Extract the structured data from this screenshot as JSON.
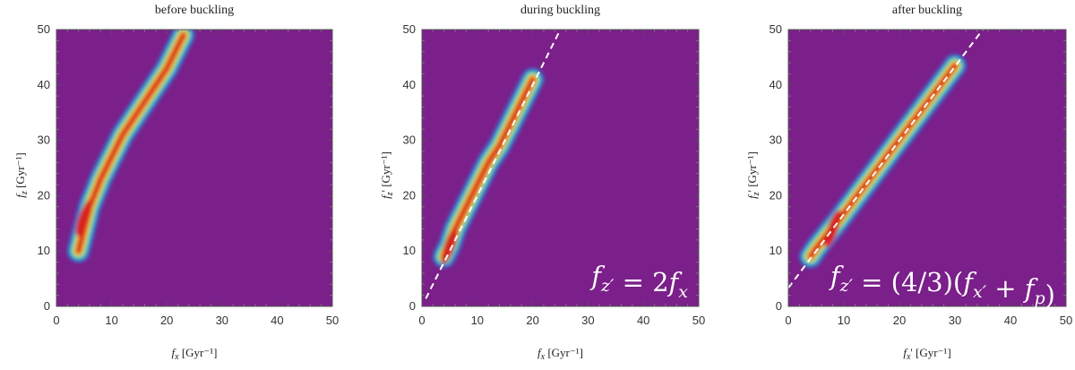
{
  "colors": {
    "background": "#7b1f8a",
    "colormap": [
      "#7b1f8a",
      "#3c5fc4",
      "#2fa6d8",
      "#4fd6b5",
      "#c8e04a",
      "#f3b62e",
      "#ee6a22",
      "#d8231f"
    ],
    "fit_line": "#ffffff"
  },
  "chart_data": [
    {
      "type": "heatmap",
      "title": "before buckling",
      "xlabel": "f_x [Gyr⁻¹]",
      "ylabel": "f_z [Gyr⁻¹]",
      "xlim": [
        0,
        50
      ],
      "ylim": [
        0,
        50
      ],
      "xticks": [
        0,
        10,
        20,
        30,
        40,
        50
      ],
      "yticks": [
        0,
        10,
        20,
        30,
        40,
        50
      ],
      "density_ridge": {
        "x": [
          4,
          5,
          6,
          8,
          10,
          12,
          14,
          16,
          18,
          20,
          22,
          23
        ],
        "z": [
          10,
          14,
          18,
          23,
          27,
          31,
          34,
          37,
          40,
          43,
          47,
          49
        ],
        "peak": [
          5,
          16
        ]
      },
      "fit_line": null,
      "formula": ""
    },
    {
      "type": "heatmap",
      "title": "during buckling",
      "xlabel": "f_x [Gyr⁻¹]",
      "ylabel": "f_z' [Gyr⁻¹]",
      "xlim": [
        0,
        50
      ],
      "ylim": [
        0,
        50
      ],
      "xticks": [
        0,
        10,
        20,
        30,
        40,
        50
      ],
      "yticks": [
        0,
        10,
        20,
        30,
        40,
        50
      ],
      "density_ridge": {
        "x": [
          4,
          5,
          6,
          8,
          10,
          12,
          14,
          16,
          18,
          20
        ],
        "z": [
          9,
          11,
          14,
          18,
          22,
          26,
          29,
          33,
          37,
          41
        ],
        "peak": [
          5,
          11
        ]
      },
      "fit_line": {
        "slope": 2,
        "intercept": 0,
        "x_from": 0.7,
        "x_to": 25
      },
      "formula": "f_z' = 2f_x"
    },
    {
      "type": "heatmap",
      "title": "after buckling",
      "xlabel": "f_x' [Gyr⁻¹]",
      "ylabel": "f_z' [Gyr⁻¹]",
      "xlim": [
        0,
        50
      ],
      "ylim": [
        0,
        50
      ],
      "xticks": [
        0,
        10,
        20,
        30,
        40,
        50
      ],
      "yticks": [
        0,
        10,
        20,
        30,
        40,
        50
      ],
      "density_ridge": {
        "x": [
          4,
          5,
          7,
          9,
          12,
          15,
          18,
          21,
          24,
          27,
          30
        ],
        "z": [
          9,
          10.5,
          13,
          15.5,
          19.5,
          23.5,
          27.5,
          31.5,
          35.5,
          39.5,
          43.5
        ],
        "peak": [
          8,
          14
        ]
      },
      "fit_line": {
        "slope": 1.3333,
        "intercept": 3.33,
        "x_from": 0,
        "x_to": 35
      },
      "formula": "f_z' = (4/3)(f_x' + f_p)"
    }
  ]
}
